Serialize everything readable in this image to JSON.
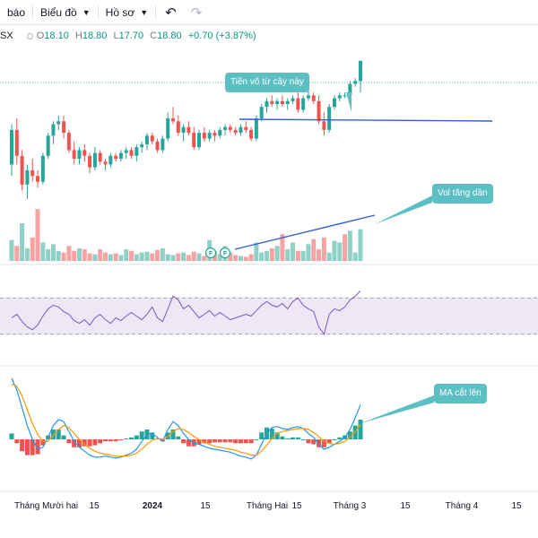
{
  "toolbar": {
    "partial_item": "báo",
    "chart_menu": "Biểu đồ",
    "profile_menu": "Hồ sơ"
  },
  "legend": {
    "symbol": "SX",
    "open_label": "O",
    "open": "18.10",
    "high_label": "H",
    "high": "18.80",
    "low_label": "L",
    "low": "17.70",
    "close_label": "C",
    "close": "18.80",
    "change": "+0.70 (+3.87%)"
  },
  "annotations": {
    "money_callout": "Tiền vô từ cây này",
    "vol_callout": "Vol tăng dần",
    "ma_callout": "MA cắt lên"
  },
  "event_markers": [
    "F",
    "F"
  ],
  "x_axis": {
    "labels": [
      "Tháng Mười hai",
      "15",
      "2024",
      "15",
      "Tháng Hai",
      "15",
      "Tháng 3",
      "15",
      "Tháng 4",
      "15"
    ],
    "bold_label": "2024"
  },
  "colors": {
    "up": "#26a69a",
    "down": "#ef5350",
    "vol_up": "#8fd1c7",
    "vol_down": "#f5a3a3",
    "rsi_line": "#7e57c2",
    "rsi_band": "#ede7f6",
    "macd_line": "#2196f3",
    "signal_line": "#ff9800",
    "trend_line": "#3060e0",
    "callout": "#5bbfc4"
  },
  "chart_data": {
    "type": "candlestick",
    "candles": [
      {
        "o": 15.2,
        "h": 16.6,
        "l": 14.8,
        "c": 16.4
      },
      {
        "o": 16.4,
        "h": 16.8,
        "l": 15.2,
        "c": 15.5
      },
      {
        "o": 15.5,
        "h": 15.7,
        "l": 14.3,
        "c": 14.5
      },
      {
        "o": 14.5,
        "h": 15.2,
        "l": 14.0,
        "c": 15.0
      },
      {
        "o": 15.0,
        "h": 15.4,
        "l": 14.6,
        "c": 14.8
      },
      {
        "o": 14.8,
        "h": 15.0,
        "l": 14.4,
        "c": 14.6
      },
      {
        "o": 14.6,
        "h": 15.6,
        "l": 14.5,
        "c": 15.5
      },
      {
        "o": 15.5,
        "h": 16.3,
        "l": 15.4,
        "c": 16.2
      },
      {
        "o": 16.2,
        "h": 16.7,
        "l": 15.9,
        "c": 16.6
      },
      {
        "o": 16.6,
        "h": 16.9,
        "l": 16.4,
        "c": 16.7
      },
      {
        "o": 16.7,
        "h": 16.9,
        "l": 16.1,
        "c": 16.3
      },
      {
        "o": 16.3,
        "h": 16.4,
        "l": 15.6,
        "c": 15.7
      },
      {
        "o": 15.7,
        "h": 16.0,
        "l": 15.2,
        "c": 15.4
      },
      {
        "o": 15.4,
        "h": 15.8,
        "l": 15.2,
        "c": 15.7
      },
      {
        "o": 15.7,
        "h": 15.9,
        "l": 15.3,
        "c": 15.5
      },
      {
        "o": 15.5,
        "h": 15.6,
        "l": 14.9,
        "c": 15.1
      },
      {
        "o": 15.1,
        "h": 15.8,
        "l": 15.0,
        "c": 15.6
      },
      {
        "o": 15.6,
        "h": 15.7,
        "l": 15.2,
        "c": 15.3
      },
      {
        "o": 15.3,
        "h": 15.4,
        "l": 15.0,
        "c": 15.2
      },
      {
        "o": 15.2,
        "h": 15.6,
        "l": 15.1,
        "c": 15.5
      },
      {
        "o": 15.5,
        "h": 15.6,
        "l": 15.3,
        "c": 15.4
      },
      {
        "o": 15.4,
        "h": 15.7,
        "l": 15.3,
        "c": 15.6
      },
      {
        "o": 15.6,
        "h": 15.8,
        "l": 15.4,
        "c": 15.7
      },
      {
        "o": 15.7,
        "h": 15.8,
        "l": 15.4,
        "c": 15.5
      },
      {
        "o": 15.5,
        "h": 15.9,
        "l": 15.3,
        "c": 15.8
      },
      {
        "o": 15.8,
        "h": 16.0,
        "l": 15.6,
        "c": 15.9
      },
      {
        "o": 15.9,
        "h": 16.3,
        "l": 15.7,
        "c": 16.2
      },
      {
        "o": 16.2,
        "h": 16.3,
        "l": 15.9,
        "c": 16.0
      },
      {
        "o": 16.0,
        "h": 16.1,
        "l": 15.6,
        "c": 15.7
      },
      {
        "o": 15.7,
        "h": 16.2,
        "l": 15.6,
        "c": 16.1
      },
      {
        "o": 16.1,
        "h": 17.0,
        "l": 16.0,
        "c": 16.8
      },
      {
        "o": 16.8,
        "h": 17.2,
        "l": 16.6,
        "c": 16.7
      },
      {
        "o": 16.7,
        "h": 16.9,
        "l": 16.2,
        "c": 16.3
      },
      {
        "o": 16.3,
        "h": 16.6,
        "l": 16.0,
        "c": 16.5
      },
      {
        "o": 16.5,
        "h": 16.7,
        "l": 16.2,
        "c": 16.3
      },
      {
        "o": 16.3,
        "h": 16.5,
        "l": 15.7,
        "c": 15.8
      },
      {
        "o": 15.8,
        "h": 16.4,
        "l": 15.7,
        "c": 16.3
      },
      {
        "o": 16.3,
        "h": 16.5,
        "l": 16.0,
        "c": 16.1
      },
      {
        "o": 16.1,
        "h": 16.4,
        "l": 16.0,
        "c": 16.3
      },
      {
        "o": 16.3,
        "h": 16.4,
        "l": 16.0,
        "c": 16.2
      },
      {
        "o": 16.2,
        "h": 16.5,
        "l": 16.1,
        "c": 16.4
      },
      {
        "o": 16.4,
        "h": 16.6,
        "l": 16.2,
        "c": 16.5
      },
      {
        "o": 16.5,
        "h": 16.6,
        "l": 16.3,
        "c": 16.4
      },
      {
        "o": 16.4,
        "h": 16.5,
        "l": 16.2,
        "c": 16.3
      },
      {
        "o": 16.3,
        "h": 16.6,
        "l": 16.2,
        "c": 16.5
      },
      {
        "o": 16.5,
        "h": 16.7,
        "l": 16.3,
        "c": 16.4
      },
      {
        "o": 16.4,
        "h": 16.5,
        "l": 16.0,
        "c": 16.1
      },
      {
        "o": 16.1,
        "h": 16.9,
        "l": 16.0,
        "c": 16.8
      },
      {
        "o": 16.8,
        "h": 17.3,
        "l": 16.7,
        "c": 17.2
      },
      {
        "o": 17.2,
        "h": 17.5,
        "l": 17.0,
        "c": 17.4
      },
      {
        "o": 17.4,
        "h": 17.6,
        "l": 17.2,
        "c": 17.3
      },
      {
        "o": 17.3,
        "h": 17.5,
        "l": 17.1,
        "c": 17.4
      },
      {
        "o": 17.4,
        "h": 17.6,
        "l": 17.2,
        "c": 17.3
      },
      {
        "o": 17.3,
        "h": 17.5,
        "l": 17.1,
        "c": 17.4
      },
      {
        "o": 17.4,
        "h": 17.6,
        "l": 17.3,
        "c": 17.5
      },
      {
        "o": 17.5,
        "h": 17.7,
        "l": 17.0,
        "c": 17.1
      },
      {
        "o": 17.1,
        "h": 17.6,
        "l": 17.0,
        "c": 17.5
      },
      {
        "o": 17.5,
        "h": 17.8,
        "l": 17.4,
        "c": 17.6
      },
      {
        "o": 17.6,
        "h": 17.7,
        "l": 17.3,
        "c": 17.4
      },
      {
        "o": 17.4,
        "h": 17.6,
        "l": 16.6,
        "c": 16.7
      },
      {
        "o": 16.7,
        "h": 17.0,
        "l": 16.2,
        "c": 16.4
      },
      {
        "o": 16.4,
        "h": 17.3,
        "l": 16.3,
        "c": 17.2
      },
      {
        "o": 17.2,
        "h": 17.6,
        "l": 17.1,
        "c": 17.5
      },
      {
        "o": 17.5,
        "h": 17.7,
        "l": 17.4,
        "c": 17.6
      },
      {
        "o": 17.6,
        "h": 17.7,
        "l": 17.5,
        "c": 17.6
      },
      {
        "o": 17.6,
        "h": 18.1,
        "l": 17.5,
        "c": 18.0
      },
      {
        "o": 18.0,
        "h": 18.2,
        "l": 17.9,
        "c": 18.1
      },
      {
        "o": 18.1,
        "h": 18.8,
        "l": 17.7,
        "c": 18.8
      }
    ],
    "volume": [
      25,
      18,
      45,
      15,
      28,
      62,
      22,
      14,
      20,
      12,
      10,
      18,
      12,
      15,
      14,
      9,
      8,
      14,
      10,
      8,
      9,
      7,
      14,
      12,
      8,
      10,
      11,
      9,
      13,
      15,
      8,
      7,
      9,
      10,
      7,
      11,
      9,
      6,
      25,
      12,
      8,
      18,
      10,
      7,
      6,
      5,
      8,
      22,
      10,
      12,
      15,
      18,
      32,
      14,
      22,
      12,
      12,
      20,
      26,
      14,
      28,
      10,
      24,
      22,
      32,
      36,
      10,
      38
    ],
    "volume_up": [
      true,
      false,
      true,
      true,
      false,
      false,
      true,
      true,
      true,
      true,
      false,
      false,
      false,
      true,
      false,
      false,
      true,
      false,
      false,
      true,
      false,
      true,
      true,
      false,
      true,
      true,
      true,
      false,
      false,
      true,
      true,
      true,
      false,
      true,
      false,
      false,
      true,
      false,
      true,
      false,
      true,
      true,
      false,
      false,
      true,
      false,
      false,
      true,
      true,
      true,
      false,
      true,
      false,
      true,
      true,
      false,
      true,
      true,
      false,
      false,
      false,
      true,
      true,
      true,
      false,
      true,
      true,
      true
    ],
    "rsi": [
      48,
      52,
      44,
      38,
      35,
      40,
      50,
      58,
      62,
      60,
      55,
      52,
      45,
      42,
      46,
      40,
      48,
      52,
      46,
      42,
      48,
      45,
      50,
      54,
      50,
      46,
      52,
      60,
      48,
      44,
      58,
      72,
      68,
      58,
      62,
      55,
      48,
      52,
      56,
      50,
      54,
      50,
      46,
      48,
      50,
      52,
      50,
      56,
      62,
      66,
      62,
      60,
      64,
      58,
      66,
      70,
      62,
      58,
      55,
      38,
      30,
      52,
      58,
      56,
      60,
      68,
      72,
      78
    ],
    "macd": [
      0.62,
      0.5,
      0.32,
      0.14,
      0.0,
      -0.1,
      -0.08,
      0.02,
      0.14,
      0.2,
      0.18,
      0.08,
      -0.02,
      -0.08,
      -0.12,
      -0.16,
      -0.18,
      -0.18,
      -0.17,
      -0.18,
      -0.19,
      -0.18,
      -0.16,
      -0.14,
      -0.1,
      -0.02,
      0.05,
      0.06,
      0.02,
      -0.02,
      0.1,
      0.18,
      0.14,
      0.06,
      0.0,
      -0.04,
      -0.05,
      -0.07,
      -0.09,
      -0.1,
      -0.11,
      -0.12,
      -0.13,
      -0.15,
      -0.17,
      -0.18,
      -0.2,
      -0.16,
      -0.05,
      0.06,
      0.12,
      0.13,
      0.11,
      0.1,
      0.12,
      0.13,
      0.11,
      0.06,
      0.02,
      -0.05,
      -0.1,
      -0.08,
      -0.05,
      -0.02,
      0.02,
      0.1,
      0.22,
      0.35
    ],
    "signal": [
      0.56,
      0.54,
      0.44,
      0.3,
      0.16,
      0.05,
      -0.02,
      -0.02,
      0.04,
      0.1,
      0.14,
      0.12,
      0.06,
      0.0,
      -0.05,
      -0.09,
      -0.12,
      -0.14,
      -0.15,
      -0.16,
      -0.17,
      -0.17,
      -0.17,
      -0.16,
      -0.14,
      -0.1,
      -0.05,
      -0.01,
      0.01,
      0.0,
      0.03,
      0.08,
      0.11,
      0.1,
      0.07,
      0.03,
      0.0,
      -0.03,
      -0.05,
      -0.07,
      -0.08,
      -0.09,
      -0.1,
      -0.11,
      -0.13,
      -0.14,
      -0.16,
      -0.16,
      -0.12,
      -0.06,
      0.01,
      0.06,
      0.08,
      0.09,
      0.1,
      0.11,
      0.11,
      0.1,
      0.07,
      0.03,
      -0.02,
      -0.04,
      -0.05,
      -0.04,
      -0.02,
      0.02,
      0.08,
      0.15
    ]
  }
}
